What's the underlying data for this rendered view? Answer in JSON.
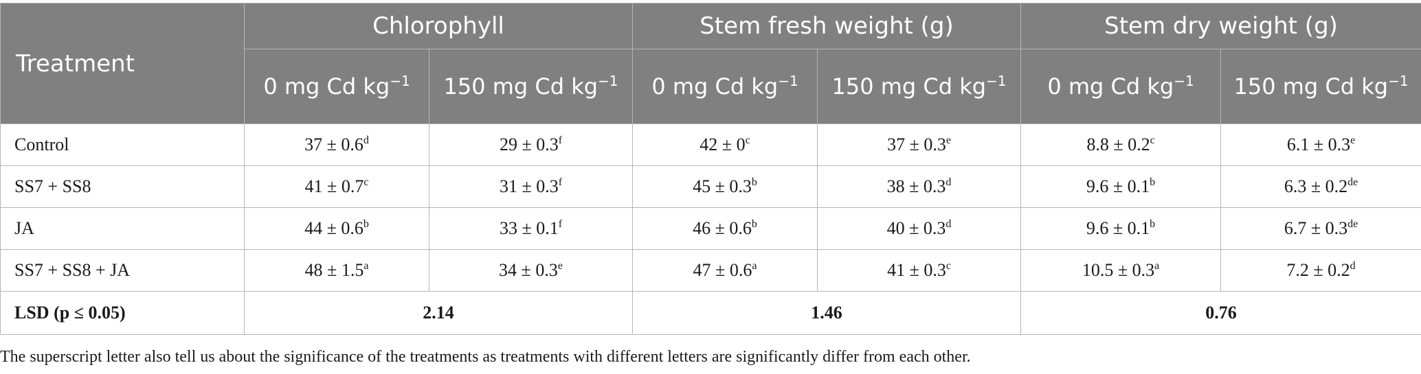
{
  "table": {
    "treatment_header": "Treatment",
    "groups": [
      "Chlorophyll",
      "Stem fresh weight (g)",
      "Stem dry weight (g)"
    ],
    "subheaders": {
      "low": "0 mg Cd kg",
      "high": "150 mg Cd kg",
      "unit_exponent": "−1"
    },
    "rows": [
      {
        "treatment": "Control",
        "cells": [
          {
            "value": "37 ± 0.6",
            "letter": "d"
          },
          {
            "value": "29 ± 0.3",
            "letter": "f"
          },
          {
            "value": "42 ± 0",
            "letter": "c"
          },
          {
            "value": "37 ± 0.3",
            "letter": "e"
          },
          {
            "value": "8.8 ± 0.2",
            "letter": "c"
          },
          {
            "value": "6.1 ± 0.3",
            "letter": "e"
          }
        ]
      },
      {
        "treatment": "SS7 + SS8",
        "cells": [
          {
            "value": "41 ± 0.7",
            "letter": "c"
          },
          {
            "value": "31 ± 0.3",
            "letter": "f"
          },
          {
            "value": "45 ± 0.3",
            "letter": "b"
          },
          {
            "value": "38 ± 0.3",
            "letter": "d"
          },
          {
            "value": "9.6 ± 0.1",
            "letter": "b"
          },
          {
            "value": "6.3 ± 0.2",
            "letter": "de"
          }
        ]
      },
      {
        "treatment": "JA",
        "cells": [
          {
            "value": "44 ± 0.6",
            "letter": "b"
          },
          {
            "value": "33 ± 0.1",
            "letter": "f"
          },
          {
            "value": "46 ± 0.6",
            "letter": "b"
          },
          {
            "value": "40 ± 0.3",
            "letter": "d"
          },
          {
            "value": "9.6 ± 0.1",
            "letter": "b"
          },
          {
            "value": "6.7 ± 0.3",
            "letter": "de"
          }
        ]
      },
      {
        "treatment": "SS7 + SS8 + JA",
        "cells": [
          {
            "value": "48 ± 1.5",
            "letter": "a"
          },
          {
            "value": "34 ± 0.3",
            "letter": "e"
          },
          {
            "value": "47 ± 0.6",
            "letter": "a"
          },
          {
            "value": "41 ± 0.3",
            "letter": "c"
          },
          {
            "value": "10.5 ± 0.3",
            "letter": "a"
          },
          {
            "value": "7.2 ± 0.2",
            "letter": "d"
          }
        ]
      }
    ],
    "lsd": {
      "label": "LSD (p ≤ 0.05)",
      "values": [
        "2.14",
        "1.46",
        "0.76"
      ]
    }
  },
  "footnote": "The superscript letter also tell us about the significance of the treatments as treatments with different letters are significantly differ from each other."
}
